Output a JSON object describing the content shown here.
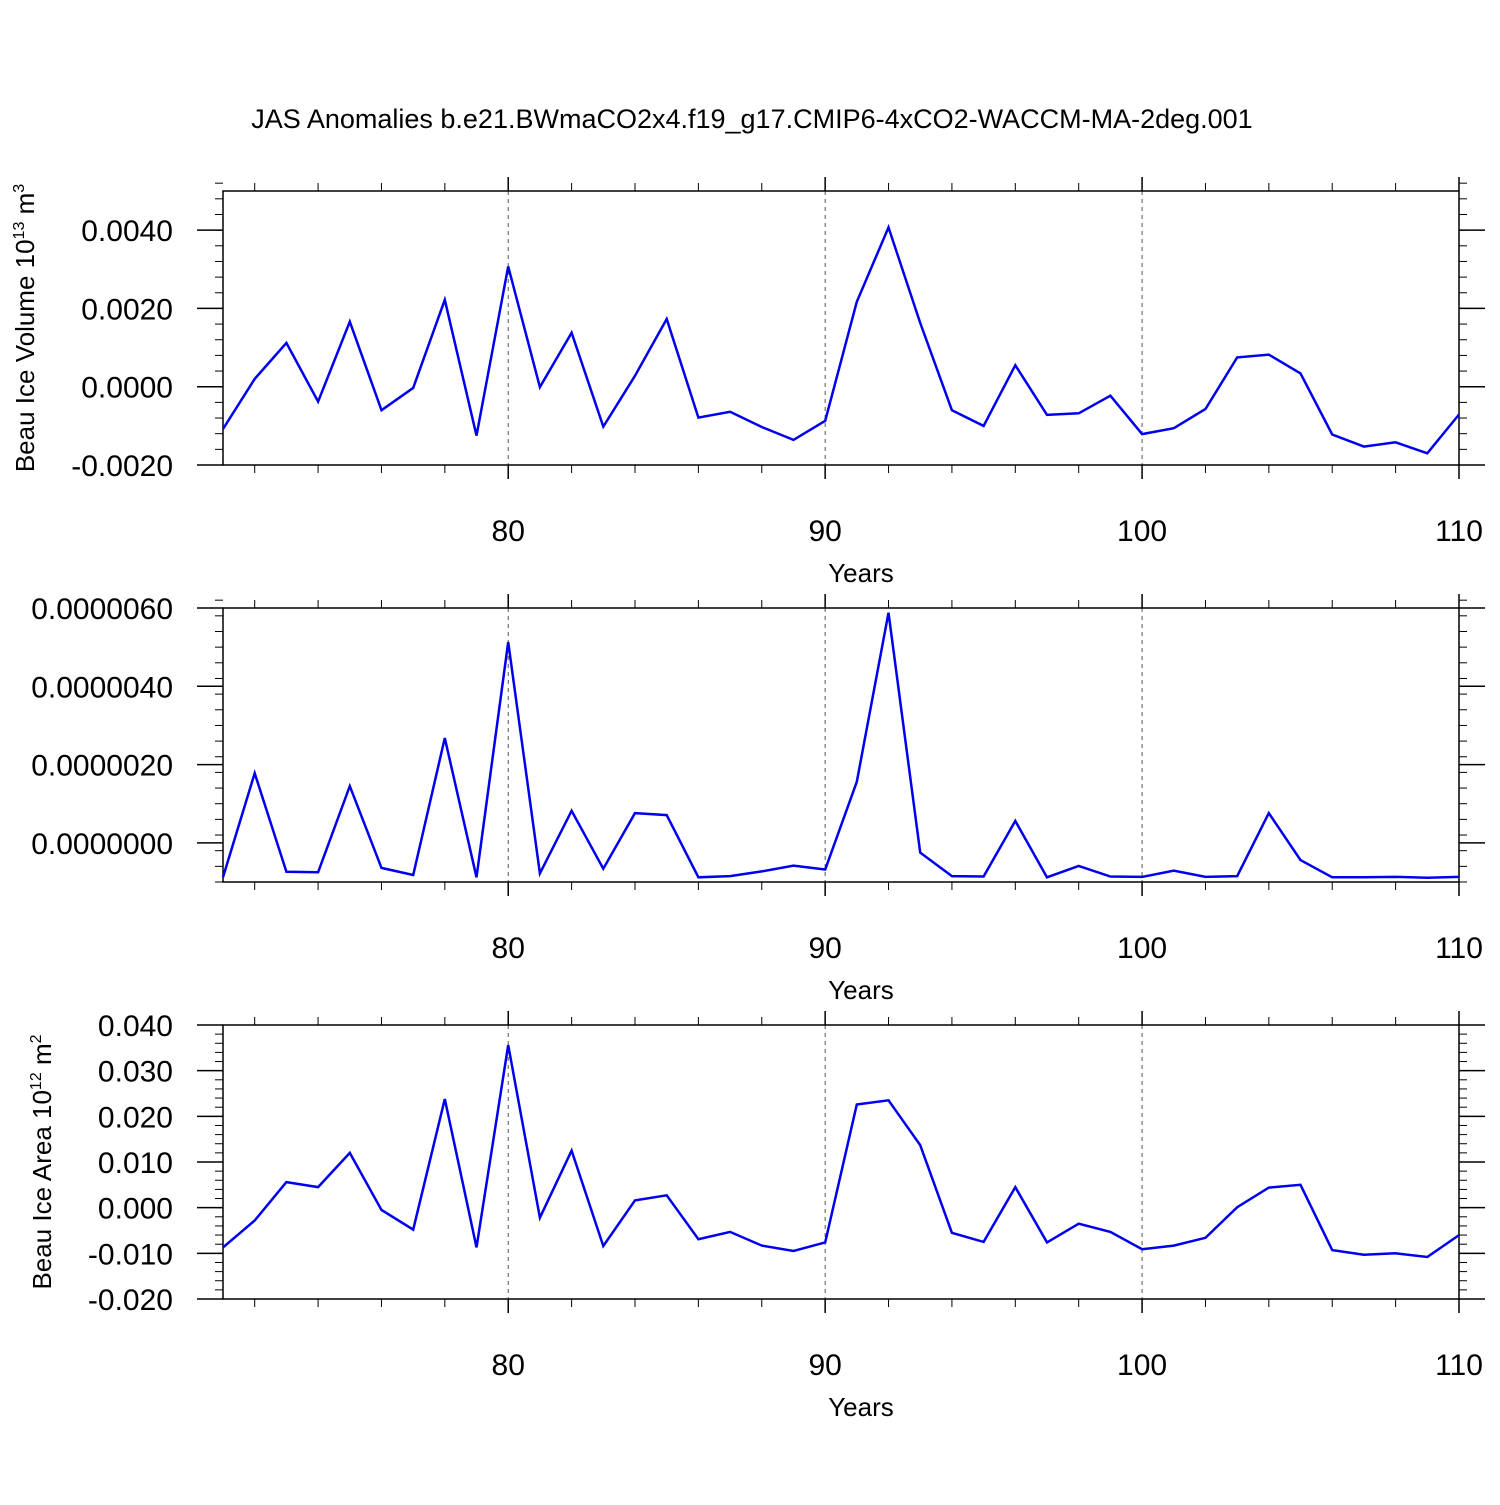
{
  "title": "JAS Anomalies b.e21.BWmaCO2x4.f19_g17.CMIP6-4xCO2-WACCM-MA-2deg.001",
  "colors": {
    "line": "#0000ee",
    "axis": "#000000",
    "grid": "#555555"
  },
  "chart_data": [
    {
      "type": "line",
      "id": "volume",
      "ylabel": {
        "main": "Beau Ice Volume 10",
        "sup": "13",
        "unit": " m",
        "unit_sup": "3"
      },
      "xlabel": "Years",
      "xlim": [
        71,
        110
      ],
      "ylim": [
        -0.002,
        0.005
      ],
      "yticks": [
        -0.002,
        0.0,
        0.002,
        0.004
      ],
      "ytick_labels": [
        "-0.0020",
        "0.0000",
        "0.0020",
        "0.0040"
      ],
      "yminor_step": 0.0004,
      "xticks": [
        80,
        90,
        100,
        110
      ],
      "xtick_labels": [
        "80",
        "90",
        "100",
        "110"
      ],
      "x": [
        71,
        72,
        73,
        74,
        75,
        76,
        77,
        78,
        79,
        80,
        81,
        82,
        83,
        84,
        85,
        86,
        87,
        88,
        89,
        90,
        91,
        92,
        93,
        94,
        95,
        96,
        97,
        98,
        99,
        100,
        101,
        102,
        103,
        104,
        105,
        106,
        107,
        108,
        109,
        110
      ],
      "values": [
        -0.00108,
        0.0002,
        0.00112,
        -0.00038,
        0.00166,
        -0.0006,
        -3e-05,
        0.00222,
        -0.00125,
        0.00307,
        -1e-05,
        0.00138,
        -0.00102,
        0.00028,
        0.00173,
        -0.00079,
        -0.00064,
        -0.00103,
        -0.00136,
        -0.00087,
        0.00217,
        0.00407,
        0.00163,
        -0.0006,
        -0.001,
        0.00055,
        -0.00072,
        -0.00068,
        -0.00023,
        -0.00121,
        -0.00106,
        -0.00057,
        0.00075,
        0.00082,
        0.00034,
        -0.00122,
        -0.00153,
        -0.00142,
        -0.0017,
        -0.00071
      ]
    },
    {
      "type": "line",
      "id": "thickness",
      "ylabel": {
        "main": "",
        "sup": "",
        "unit": "",
        "unit_sup": ""
      },
      "xlabel": "Years",
      "xlim": [
        71,
        110
      ],
      "ylim": [
        -1e-06,
        6e-06
      ],
      "yticks": [
        0.0,
        2e-06,
        4e-06,
        6e-06
      ],
      "ytick_labels": [
        "0.0000000",
        "0.0000020",
        "0.0000040",
        "0.0000060"
      ],
      "yminor_step": 4e-07,
      "xticks": [
        80,
        90,
        100,
        110
      ],
      "xtick_labels": [
        "80",
        "90",
        "100",
        "110"
      ],
      "x": [
        71,
        72,
        73,
        74,
        75,
        76,
        77,
        78,
        79,
        80,
        81,
        82,
        83,
        84,
        85,
        86,
        87,
        88,
        89,
        90,
        91,
        92,
        93,
        94,
        95,
        96,
        97,
        98,
        99,
        100,
        101,
        102,
        103,
        104,
        105,
        106,
        107,
        108,
        109,
        110
      ],
      "values": [
        -8.8e-07,
        1.78e-06,
        -7.4e-07,
        -7.5e-07,
        1.45e-06,
        -6.4e-07,
        -8.2e-07,
        2.68e-06,
        -8.8e-07,
        5.13e-06,
        -7.8e-07,
        8.2e-07,
        -6.6e-07,
        7.6e-07,
        7.1e-07,
        -8.8e-07,
        -8.5e-07,
        -7.3e-07,
        -5.8e-07,
        -6.8e-07,
        1.56e-06,
        5.88e-06,
        -2.5e-07,
        -8.5e-07,
        -8.6e-07,
        5.6e-07,
        -8.8e-07,
        -5.9e-07,
        -8.6e-07,
        -8.7e-07,
        -7.1e-07,
        -8.7e-07,
        -8.5e-07,
        7.6e-07,
        -4.4e-07,
        -8.8e-07,
        -8.8e-07,
        -8.7e-07,
        -8.9e-07,
        -8.7e-07
      ]
    },
    {
      "type": "line",
      "id": "area",
      "ylabel": {
        "main": "Beau Ice Area 10",
        "sup": "12",
        "unit": " m",
        "unit_sup": "2"
      },
      "xlabel": "Years",
      "xlim": [
        71,
        110
      ],
      "ylim": [
        -0.02,
        0.04
      ],
      "yticks": [
        -0.02,
        -0.01,
        0.0,
        0.01,
        0.02,
        0.03,
        0.04
      ],
      "ytick_labels": [
        "-0.020",
        "-0.010",
        "0.000",
        "0.010",
        "0.020",
        "0.030",
        "0.040"
      ],
      "yminor_step": 0.002,
      "xticks": [
        80,
        90,
        100,
        110
      ],
      "xtick_labels": [
        "80",
        "90",
        "100",
        "110"
      ],
      "x": [
        71,
        72,
        73,
        74,
        75,
        76,
        77,
        78,
        79,
        80,
        81,
        82,
        83,
        84,
        85,
        86,
        87,
        88,
        89,
        90,
        91,
        92,
        93,
        94,
        95,
        96,
        97,
        98,
        99,
        100,
        101,
        102,
        103,
        104,
        105,
        106,
        107,
        108,
        109,
        110
      ],
      "values": [
        -0.0087,
        -0.0028,
        0.0056,
        0.0045,
        0.012,
        -0.0005,
        -0.0048,
        0.0238,
        -0.0087,
        0.0356,
        -0.0022,
        0.0125,
        -0.0084,
        0.0016,
        0.0027,
        -0.0069,
        -0.0053,
        -0.0083,
        -0.0095,
        -0.0076,
        0.0226,
        0.0235,
        0.0137,
        -0.0055,
        -0.0075,
        0.0045,
        -0.0076,
        -0.0035,
        -0.0053,
        -0.0091,
        -0.0083,
        -0.0066,
        0.0001,
        0.0044,
        0.005,
        -0.0093,
        -0.0103,
        -0.01,
        -0.0108,
        -0.006
      ]
    }
  ]
}
